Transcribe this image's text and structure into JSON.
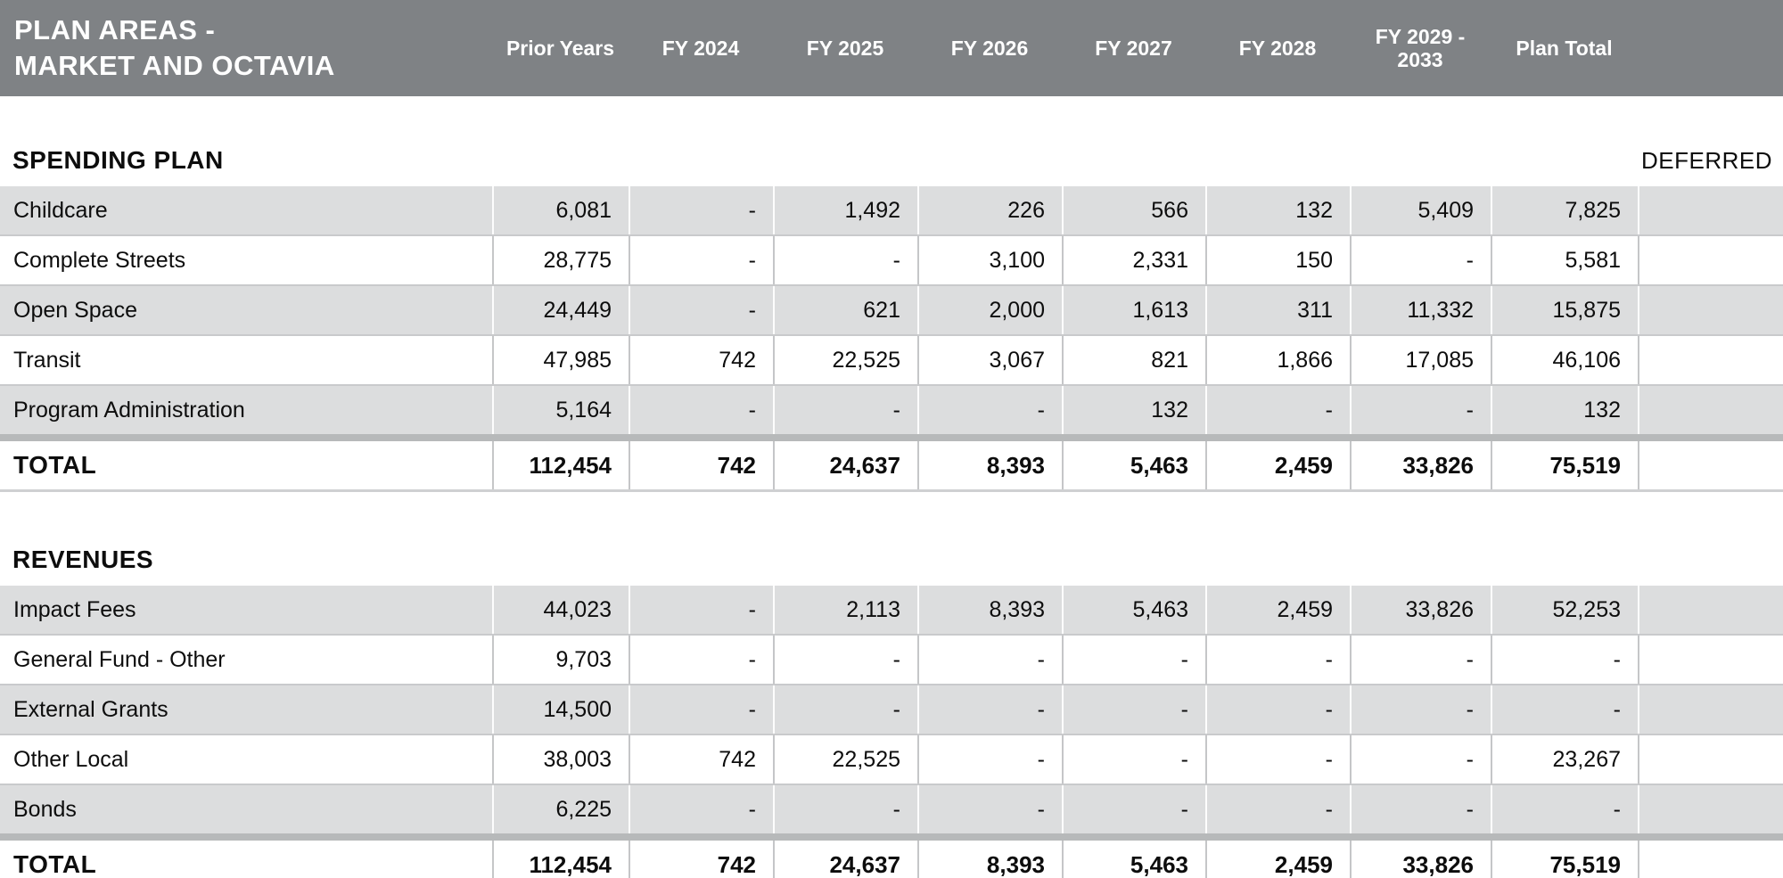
{
  "header": {
    "title_line1": "PLAN AREAS -",
    "title_line2": "MARKET AND OCTAVIA",
    "columns": [
      "Prior Years",
      "FY 2024",
      "FY 2025",
      "FY 2026",
      "FY 2027",
      "FY 2028",
      "FY 2029 - 2033",
      "Plan Total"
    ]
  },
  "colors": {
    "header_bg": "#7f8285",
    "row_stripe": "#dcddde",
    "total_band": "#b7b9ba"
  },
  "sections": [
    {
      "heading": "SPENDING PLAN",
      "corner_label": "DEFERRED",
      "rows": [
        {
          "label": "Childcare",
          "values": [
            "6,081",
            "-",
            "1,492",
            "226",
            "566",
            "132",
            "5,409",
            "7,825"
          ],
          "deferred": ""
        },
        {
          "label": "Complete Streets",
          "values": [
            "28,775",
            "-",
            "-",
            "3,100",
            "2,331",
            "150",
            "-",
            "5,581"
          ],
          "deferred": ""
        },
        {
          "label": "Open Space",
          "values": [
            "24,449",
            "-",
            "621",
            "2,000",
            "1,613",
            "311",
            "11,332",
            "15,875"
          ],
          "deferred": ""
        },
        {
          "label": "Transit",
          "values": [
            "47,985",
            "742",
            "22,525",
            "3,067",
            "821",
            "1,866",
            "17,085",
            "46,106"
          ],
          "deferred": ""
        },
        {
          "label": "Program Administration",
          "values": [
            "5,164",
            "-",
            "-",
            "-",
            "132",
            "-",
            "-",
            "132"
          ],
          "deferred": ""
        }
      ],
      "total": {
        "label": "TOTAL",
        "values": [
          "112,454",
          "742",
          "24,637",
          "8,393",
          "5,463",
          "2,459",
          "33,826",
          "75,519"
        ],
        "deferred": ""
      }
    },
    {
      "heading": "REVENUES",
      "corner_label": "",
      "rows": [
        {
          "label": "Impact Fees",
          "values": [
            "44,023",
            "-",
            "2,113",
            "8,393",
            "5,463",
            "2,459",
            "33,826",
            "52,253"
          ],
          "deferred": ""
        },
        {
          "label": "General Fund - Other",
          "values": [
            "9,703",
            "-",
            "-",
            "-",
            "-",
            "-",
            "-",
            "-"
          ],
          "deferred": ""
        },
        {
          "label": "External Grants",
          "values": [
            "14,500",
            "-",
            "-",
            "-",
            "-",
            "-",
            "-",
            "-"
          ],
          "deferred": ""
        },
        {
          "label": "Other Local",
          "values": [
            "38,003",
            "742",
            "22,525",
            "-",
            "-",
            "-",
            "-",
            "23,267"
          ],
          "deferred": ""
        },
        {
          "label": "Bonds",
          "values": [
            "6,225",
            "-",
            "-",
            "-",
            "-",
            "-",
            "-",
            "-"
          ],
          "deferred": ""
        }
      ],
      "total": {
        "label": "TOTAL",
        "values": [
          "112,454",
          "742",
          "24,637",
          "8,393",
          "5,463",
          "2,459",
          "33,826",
          "75,519"
        ],
        "deferred": ""
      }
    }
  ]
}
